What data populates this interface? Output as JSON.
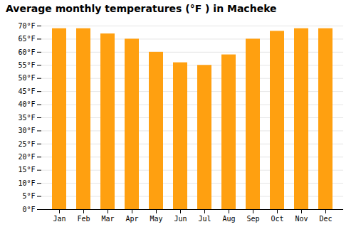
{
  "chart_data": {
    "type": "bar",
    "title": "Average monthly temperatures (°F ) in Macheke",
    "categories": [
      "Jan",
      "Feb",
      "Mar",
      "Apr",
      "May",
      "Jun",
      "Jul",
      "Aug",
      "Sep",
      "Oct",
      "Nov",
      "Dec"
    ],
    "values": [
      69,
      69,
      67,
      65,
      60,
      56,
      55,
      59,
      65,
      68,
      69,
      69
    ],
    "color": "#FFA010",
    "ylim": [
      0,
      70
    ],
    "yticks": [
      {
        "value": 0,
        "label": "0°F"
      },
      {
        "value": 5,
        "label": "5°F"
      },
      {
        "value": 10,
        "label": "10°F"
      },
      {
        "value": 15,
        "label": "15°F"
      },
      {
        "value": 20,
        "label": "20°F"
      },
      {
        "value": 25,
        "label": "25°F"
      },
      {
        "value": 30,
        "label": "30°F"
      },
      {
        "value": 35,
        "label": "35°F"
      },
      {
        "value": 40,
        "label": "40°F"
      },
      {
        "value": 45,
        "label": "45°F"
      },
      {
        "value": 50,
        "label": "50°F"
      },
      {
        "value": 55,
        "label": "55°F"
      },
      {
        "value": 60,
        "label": "60°F"
      },
      {
        "value": 65,
        "label": "65°F"
      },
      {
        "value": 70,
        "label": "70°F"
      }
    ],
    "grid": true
  }
}
